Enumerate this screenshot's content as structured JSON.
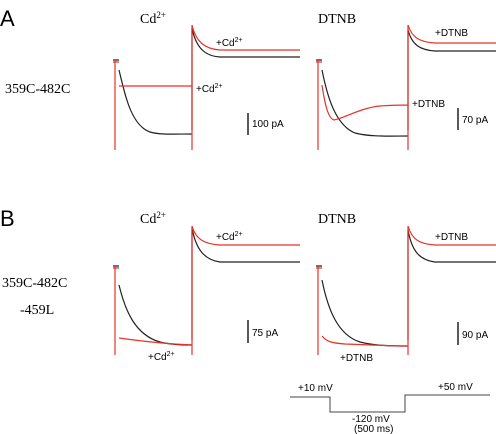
{
  "panels": [
    {
      "letter": "A",
      "construct": [
        "359C-482C"
      ],
      "conditions": [
        {
          "title": {
            "base": "Cd",
            "sup": "2+"
          },
          "label_top": {
            "base": "+Cd",
            "sup": "2+"
          },
          "label_mid": {
            "base": "+Cd",
            "sup": "2+"
          },
          "scale": "100 pA"
        },
        {
          "title": {
            "base": "DTNB",
            "sup": ""
          },
          "label_top": {
            "base": "+DTNB",
            "sup": ""
          },
          "label_mid": {
            "base": "+DTNB",
            "sup": ""
          },
          "scale": "70 pA"
        }
      ]
    },
    {
      "letter": "B",
      "construct": [
        "359C-482C",
        "-459L"
      ],
      "conditions": [
        {
          "title": {
            "base": "Cd",
            "sup": "2+"
          },
          "label_top": {
            "base": "+Cd",
            "sup": "2+"
          },
          "label_mid": {
            "base": "+Cd",
            "sup": "2+"
          },
          "scale": "75 pA"
        },
        {
          "title": {
            "base": "DTNB",
            "sup": ""
          },
          "label_top": {
            "base": "+DTNB",
            "sup": ""
          },
          "label_mid": {
            "base": "+DTNB",
            "sup": ""
          },
          "scale": "90 pA"
        }
      ]
    }
  ],
  "protocol": {
    "start": "+10 mV",
    "step": "-120 mV",
    "duration": "(500 ms)",
    "end": "+50 mV"
  }
}
